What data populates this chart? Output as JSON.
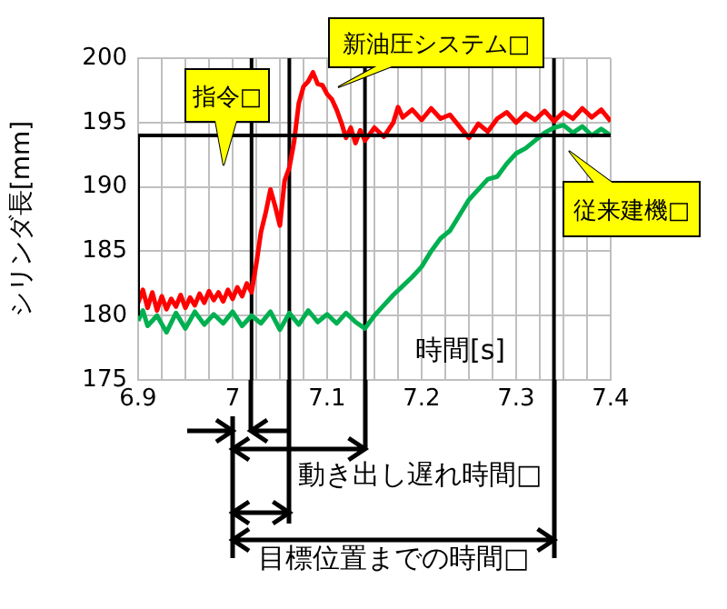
{
  "chart_data": {
    "type": "line",
    "xlabel": "時間[s]",
    "ylabel": "シリンダ長[mm]",
    "xlim": [
      6.9,
      7.4
    ],
    "ylim": [
      175,
      200
    ],
    "xticks": [
      6.9,
      {
        "value": 6.925,
        "label": null
      },
      {
        "value": 6.95,
        "label": null
      },
      {
        "value": 6.975,
        "label": null
      },
      7,
      {
        "value": 7.025,
        "label": null
      },
      {
        "value": 7.05,
        "label": null
      },
      {
        "value": 7.075,
        "label": null
      },
      7.1,
      {
        "value": 7.125,
        "label": null
      },
      {
        "value": 7.15,
        "label": null
      },
      {
        "value": 7.175,
        "label": null
      },
      7.2,
      {
        "value": 7.225,
        "label": null
      },
      {
        "value": 7.25,
        "label": null
      },
      {
        "value": 7.275,
        "label": null
      },
      7.3,
      {
        "value": 7.325,
        "label": null
      },
      {
        "value": 7.35,
        "label": null
      },
      {
        "value": 7.375,
        "label": null
      },
      7.4
    ],
    "yticks": [
      175,
      180,
      185,
      190,
      195,
      200
    ],
    "grid": true,
    "legend": false,
    "marker": "none",
    "line_style": "solid",
    "series": [
      {
        "name": "指令□",
        "type": "step",
        "color": "#000000",
        "x": [
          6.9,
          7.0,
          7.4
        ],
        "values": [
          180,
          194,
          194
        ]
      },
      {
        "name": "新油圧システム□",
        "color": "#ff0000",
        "x": [
          6.9,
          6.905,
          6.91,
          6.915,
          6.92,
          6.925,
          6.93,
          6.935,
          6.94,
          6.945,
          6.95,
          6.955,
          6.96,
          6.965,
          6.97,
          6.975,
          6.98,
          6.985,
          6.99,
          6.995,
          7.0,
          7.005,
          7.01,
          7.015,
          7.02,
          7.025,
          7.03,
          7.035,
          7.04,
          7.045,
          7.05,
          7.055,
          7.06,
          7.065,
          7.07,
          7.075,
          7.08,
          7.085,
          7.09,
          7.095,
          7.1,
          7.105,
          7.11,
          7.115,
          7.12,
          7.125,
          7.13,
          7.135,
          7.14,
          7.15,
          7.16,
          7.17,
          7.175,
          7.18,
          7.19,
          7.2,
          7.21,
          7.22,
          7.23,
          7.24,
          7.25,
          7.26,
          7.27,
          7.28,
          7.29,
          7.3,
          7.31,
          7.32,
          7.33,
          7.34,
          7.35,
          7.36,
          7.37,
          7.38,
          7.39,
          7.4
        ],
        "values": [
          181.0,
          182.0,
          180.6,
          181.8,
          180.4,
          181.5,
          180.5,
          181.3,
          180.7,
          181.6,
          180.6,
          181.4,
          180.8,
          181.7,
          181.0,
          181.9,
          181.2,
          181.8,
          181.1,
          182.0,
          181.3,
          182.2,
          181.5,
          182.5,
          181.8,
          184.0,
          186.5,
          188.0,
          189.8,
          188.5,
          187.0,
          190.5,
          191.5,
          193.5,
          196.5,
          197.8,
          198.2,
          198.9,
          198.0,
          197.9,
          197.2,
          196.8,
          196.0,
          195.0,
          193.8,
          194.6,
          193.4,
          194.4,
          193.6,
          194.6,
          193.9,
          195.0,
          196.2,
          195.4,
          196.0,
          195.2,
          196.1,
          195.3,
          195.6,
          194.7,
          193.8,
          194.9,
          194.3,
          195.3,
          195.8,
          195.0,
          195.7,
          195.2,
          195.9,
          195.1,
          195.8,
          195.3,
          196.1,
          195.4,
          196.0,
          195.1
        ]
      },
      {
        "name": "従来建機□",
        "color": "#00b050",
        "x": [
          6.9,
          6.905,
          6.91,
          6.92,
          6.93,
          6.94,
          6.95,
          6.96,
          6.97,
          6.98,
          6.99,
          7.0,
          7.01,
          7.02,
          7.03,
          7.04,
          7.05,
          7.06,
          7.07,
          7.08,
          7.09,
          7.1,
          7.11,
          7.12,
          7.13,
          7.14,
          7.15,
          7.16,
          7.17,
          7.18,
          7.19,
          7.2,
          7.21,
          7.22,
          7.23,
          7.24,
          7.25,
          7.26,
          7.27,
          7.28,
          7.29,
          7.3,
          7.31,
          7.32,
          7.33,
          7.34,
          7.35,
          7.36,
          7.37,
          7.38,
          7.39,
          7.4
        ],
        "values": [
          179.6,
          180.4,
          179.2,
          180.0,
          178.7,
          180.2,
          179.0,
          180.3,
          179.3,
          180.1,
          179.4,
          180.3,
          179.2,
          180.0,
          179.4,
          180.3,
          178.9,
          180.2,
          179.3,
          180.4,
          179.5,
          180.1,
          179.4,
          180.2,
          179.5,
          179.0,
          180.0,
          180.8,
          181.6,
          182.3,
          183.0,
          183.8,
          185.0,
          186.0,
          186.6,
          187.8,
          189.0,
          189.8,
          190.6,
          190.8,
          191.8,
          192.6,
          193.0,
          193.6,
          194.2,
          194.6,
          194.8,
          194.2,
          194.7,
          194.0,
          194.5,
          194.0
        ]
      }
    ],
    "ref_lines": [
      {
        "axis": "x",
        "value": 7.02,
        "color": "#000000"
      },
      {
        "axis": "x",
        "value": 7.06,
        "color": "#000000"
      },
      {
        "axis": "x",
        "value": 7.14,
        "color": "#000000"
      },
      {
        "axis": "x",
        "value": 7.34,
        "color": "#000000"
      }
    ],
    "annotations": [
      "動き出し遅れ時間□",
      "目標位置までの時間□"
    ]
  }
}
